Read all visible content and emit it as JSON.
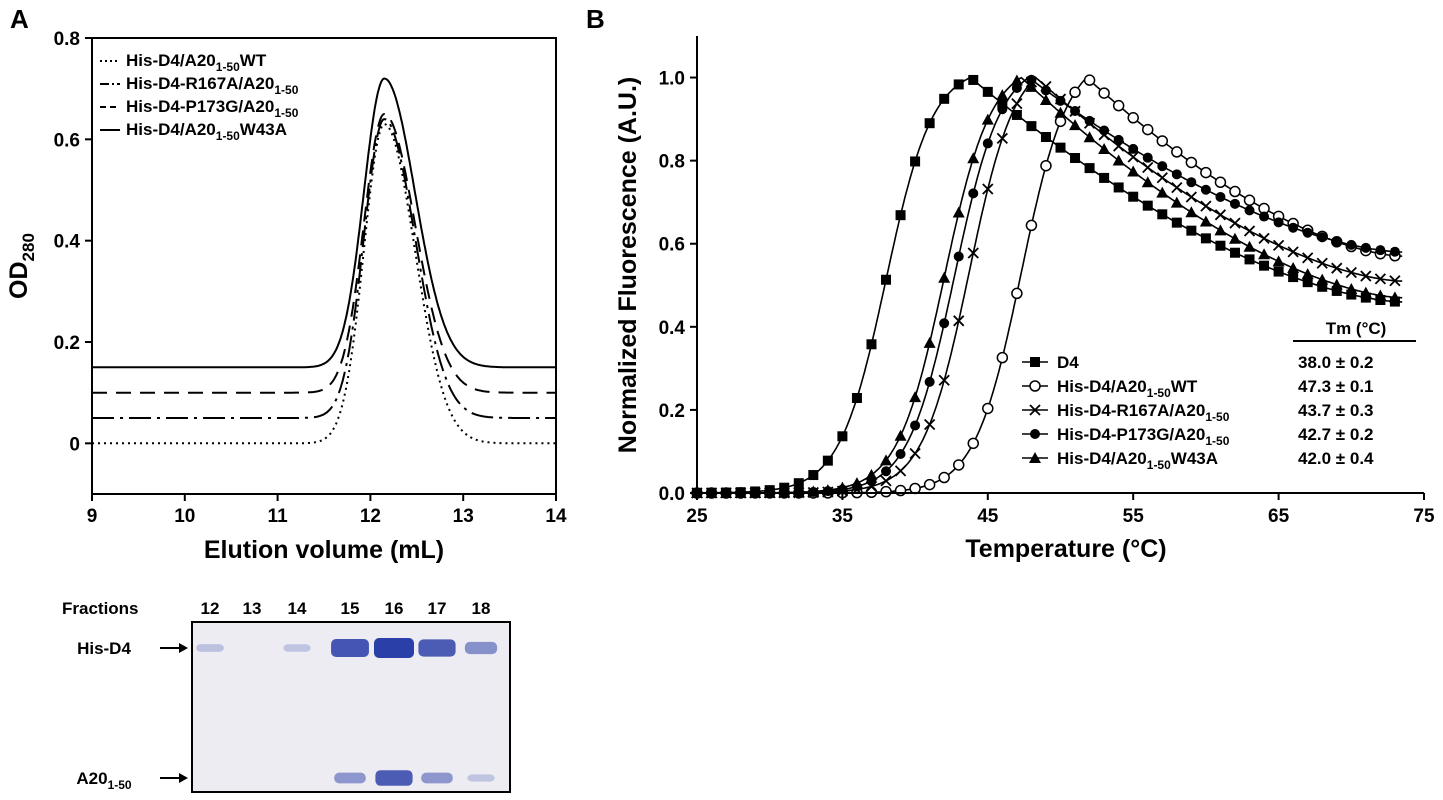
{
  "panels": {
    "a": {
      "letter": "A"
    },
    "b": {
      "letter": "B"
    }
  },
  "chart_data": [
    {
      "type": "line",
      "panel": "A",
      "xlabel": "Elution volume (mL)",
      "ylabel": "OD",
      "ylabel_sub": "280",
      "xlim": [
        9,
        14
      ],
      "ylim": [
        -0.1,
        0.8
      ],
      "x_ticks": [
        9,
        10,
        11,
        12,
        13,
        14
      ],
      "y_ticks": [
        0,
        0.2,
        0.4,
        0.6,
        0.8
      ],
      "y_tick_labels": [
        "0",
        "0.2",
        "0.4",
        "0.6",
        "0.8"
      ],
      "legend_position": "top-left",
      "series": [
        {
          "name_pre": "His-D4/A20",
          "name_sub": "1-50",
          "name_post": "WT",
          "dash": "dotted",
          "baseline": 0.0,
          "peak": 0.63,
          "center": 12.15
        },
        {
          "name_pre": "His-D4-R167A/A20",
          "name_sub": "1-50",
          "name_post": "",
          "dash": "dash-dot",
          "baseline": 0.05,
          "peak": 0.64,
          "center": 12.15
        },
        {
          "name_pre": "His-D4-P173G/A20",
          "name_sub": "1-50",
          "name_post": "",
          "dash": "dashed",
          "baseline": 0.1,
          "peak": 0.65,
          "center": 12.15
        },
        {
          "name_pre": "His-D4/A20",
          "name_sub": "1-50",
          "name_post": "W43A",
          "dash": "solid",
          "baseline": 0.15,
          "peak": 0.72,
          "center": 12.15
        }
      ]
    },
    {
      "type": "line",
      "panel": "B",
      "xlabel": "Temperature (°C)",
      "ylabel": "Normalized Fluorescence (A.U.)",
      "xlim": [
        25,
        75
      ],
      "ylim": [
        0,
        1.1
      ],
      "x_ticks": [
        25,
        35,
        45,
        55,
        65,
        75
      ],
      "y_ticks": [
        0,
        0.2,
        0.4,
        0.6,
        0.8,
        1.0
      ],
      "y_tick_labels": [
        "0.0",
        "0.2",
        "0.4",
        "0.6",
        "0.8",
        "1.0"
      ],
      "legend_position": "bottom-right",
      "tm_header": "Tm (°C)",
      "series": [
        {
          "name_pre": "D4",
          "name_sub": "",
          "name_post": "",
          "marker": "square",
          "tm": "38.0 ± 0.2",
          "mid": 38.0,
          "peak_x": 43.8,
          "end_value": 0.46
        },
        {
          "name_pre": "His-D4/A20",
          "name_sub": "1-50",
          "name_post": "WT",
          "marker": "open-circle",
          "tm": "47.3 ± 0.1",
          "mid": 47.3,
          "peak_x": 51.8,
          "end_value": 0.57
        },
        {
          "name_pre": "His-D4-R167A/A20",
          "name_sub": "1-50",
          "name_post": "",
          "marker": "x",
          "tm": "43.7 ± 0.3",
          "mid": 43.7,
          "peak_x": 48.3,
          "end_value": 0.51
        },
        {
          "name_pre": "His-D4-P173G/A20",
          "name_sub": "1-50",
          "name_post": "",
          "marker": "filled-circle",
          "tm": "42.7 ± 0.2",
          "mid": 42.7,
          "peak_x": 47.8,
          "end_value": 0.58
        },
        {
          "name_pre": "His-D4/A20",
          "name_sub": "1-50",
          "name_post": "W43A",
          "marker": "triangle",
          "tm": "42.0 ± 0.4",
          "mid": 42.0,
          "peak_x": 47.3,
          "end_value": 0.47
        }
      ]
    }
  ],
  "gel": {
    "fractions_label": "Fractions",
    "lanes": [
      "12",
      "13",
      "14",
      "15",
      "16",
      "17",
      "18"
    ],
    "bands": [
      {
        "label_pre": "His-D4",
        "label_sub": "",
        "intensities": [
          0.12,
          0.0,
          0.1,
          0.85,
          1.0,
          0.8,
          0.45
        ]
      },
      {
        "label_pre": "A20",
        "label_sub": "1-50",
        "intensities": [
          0.0,
          0.0,
          0.0,
          0.4,
          0.8,
          0.4,
          0.1
        ]
      }
    ],
    "band_color": "#2b3fa8"
  }
}
